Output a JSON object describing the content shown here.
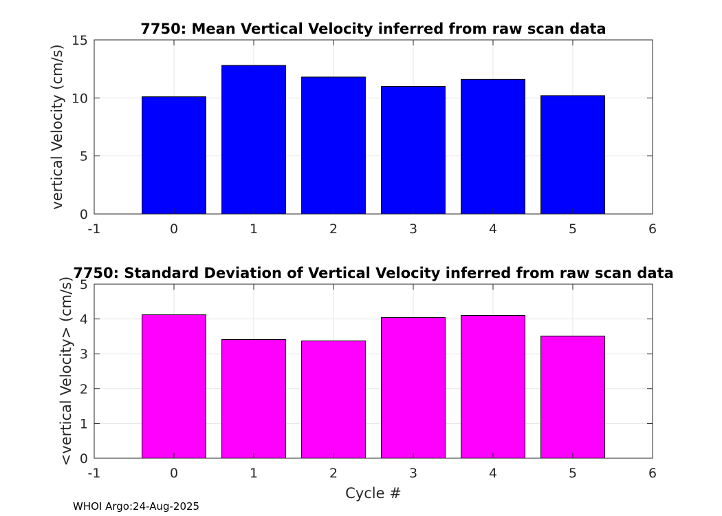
{
  "chart_data": [
    {
      "type": "bar",
      "title": "7750: Mean Vertical Velocity inferred from raw scan data",
      "xlabel": "",
      "ylabel": "vertical Velocity (cm/s)",
      "x": [
        0,
        1,
        2,
        3,
        4,
        5
      ],
      "values": [
        10.1,
        12.8,
        11.8,
        11.0,
        11.6,
        10.2
      ],
      "xlim": [
        -1,
        6
      ],
      "ylim": [
        0,
        15
      ],
      "xticks": [
        "-1",
        "0",
        "1",
        "2",
        "3",
        "4",
        "5",
        "6"
      ],
      "yticks": [
        "0",
        "5",
        "10",
        "15"
      ],
      "bar_color": "#0000ff",
      "grid": true
    },
    {
      "type": "bar",
      "title": "7750: Standard Deviation of Vertical Velocity inferred from raw scan data",
      "xlabel": "Cycle #",
      "ylabel": "<vertical Velocity> (cm/s)",
      "x": [
        0,
        1,
        2,
        3,
        4,
        5
      ],
      "values": [
        4.12,
        3.41,
        3.37,
        4.04,
        4.1,
        3.51
      ],
      "xlim": [
        -1,
        6
      ],
      "ylim": [
        0,
        5
      ],
      "xticks": [
        "-1",
        "0",
        "1",
        "2",
        "3",
        "4",
        "5",
        "6"
      ],
      "yticks": [
        "0",
        "1",
        "2",
        "3",
        "4",
        "5"
      ],
      "bar_color": "#ff00ff",
      "grid": true
    }
  ],
  "footer": "WHOI Argo:24-Aug-2025"
}
